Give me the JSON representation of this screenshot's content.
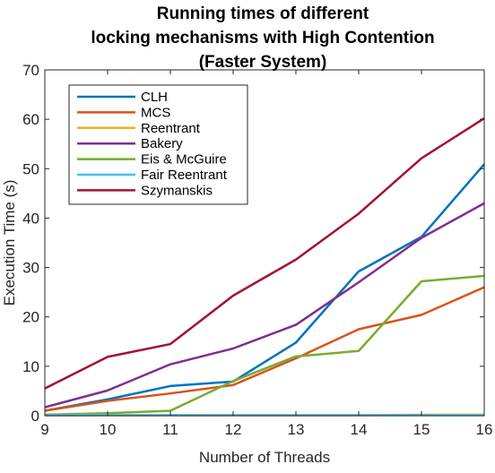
{
  "chart_data": {
    "type": "line",
    "title": [
      "Running times of different",
      "locking mechanisms with High Contention",
      "(Faster System)"
    ],
    "xlabel": "Number of Threads",
    "ylabel": "Execution Time (s)",
    "x": [
      9,
      10,
      11,
      12,
      13,
      14,
      15,
      16
    ],
    "xlim": [
      9,
      16
    ],
    "ylim": [
      0,
      70
    ],
    "xticks": [
      "9",
      "10",
      "11",
      "12",
      "13",
      "14",
      "15",
      "16"
    ],
    "yticks": [
      "0",
      "10",
      "20",
      "30",
      "40",
      "50",
      "60",
      "70"
    ],
    "grid": false,
    "legend": "top-left",
    "series": [
      {
        "name": "CLH",
        "color": "#0072BD",
        "values": [
          1.0,
          3.3,
          6.0,
          6.9,
          14.8,
          29.2,
          36.2,
          50.9
        ]
      },
      {
        "name": "MCS",
        "color": "#D95319",
        "values": [
          1.0,
          3.0,
          4.5,
          6.2,
          11.6,
          17.5,
          20.4,
          26.0
        ]
      },
      {
        "name": "Reentrant",
        "color": "#EDB120",
        "values": [
          0.1,
          0.1,
          0.1,
          0.1,
          0.1,
          0.1,
          0.2,
          0.2
        ]
      },
      {
        "name": "Bakery",
        "color": "#7E2F8E",
        "values": [
          1.7,
          5.1,
          10.4,
          13.6,
          18.4,
          27.0,
          36.0,
          43.0
        ]
      },
      {
        "name": "Eis & McGuire",
        "color": "#77AC30",
        "values": [
          0.2,
          0.5,
          1.0,
          7.0,
          12.0,
          13.1,
          27.2,
          28.3
        ]
      },
      {
        "name": "Fair Reentrant",
        "color": "#4DBEEE",
        "values": [
          0.1,
          0.1,
          0.1,
          0.1,
          0.1,
          0.1,
          0.1,
          0.1
        ]
      },
      {
        "name": "Szymanskis",
        "color": "#A2142F",
        "values": [
          5.5,
          11.9,
          14.5,
          24.3,
          31.6,
          40.9,
          52.1,
          60.2
        ]
      }
    ]
  }
}
